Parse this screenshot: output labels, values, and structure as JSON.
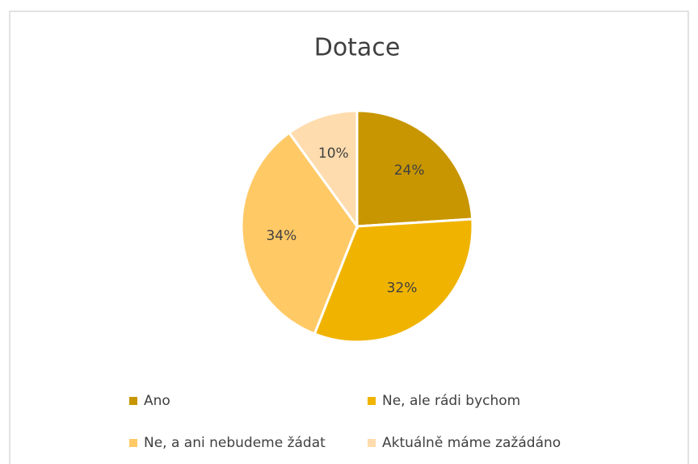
{
  "chart_data": {
    "type": "pie",
    "title": "Dotace",
    "categories": [
      "Ano",
      "Ne, ale rádi bychom",
      "Ne, a ani nebudeme žádat",
      "Aktuálně máme zažádáno"
    ],
    "values": [
      24,
      32,
      34,
      10
    ],
    "value_labels": [
      "24%",
      "32%",
      "34%",
      "10%"
    ],
    "colors": [
      "#c89600",
      "#f0b400",
      "#ffc966",
      "#ffdcae"
    ],
    "legend": "bottom"
  }
}
